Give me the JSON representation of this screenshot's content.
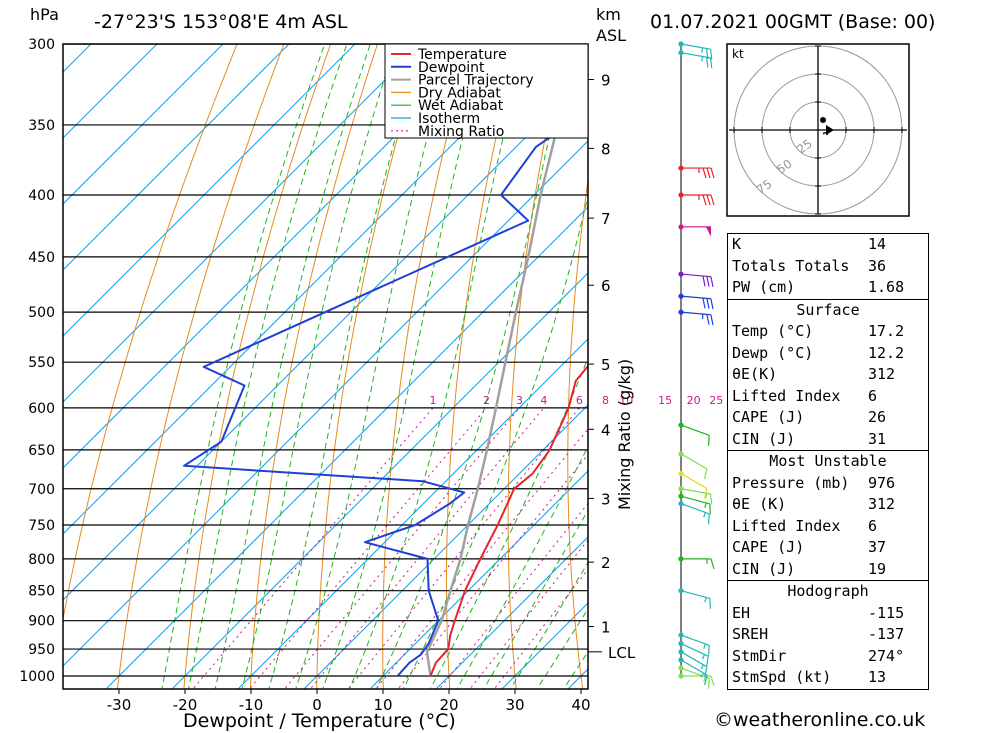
{
  "header": {
    "p_unit": "hPa",
    "location": "-27°23'S 153°08'E 4m ASL",
    "km_unit": "km",
    "km_sub": "ASL",
    "datetime": "01.07.2021 00GMT (Base: 00)"
  },
  "chart_data": {
    "type": "skew-t",
    "xlabel": "Dewpoint / Temperature (°C)",
    "ylabel_right": "Mixing Ratio (g/kg)",
    "xlim": [
      -40,
      40
    ],
    "ylim_hpa": [
      1000,
      300
    ],
    "pressure_ticks": [
      300,
      350,
      400,
      450,
      500,
      550,
      600,
      650,
      700,
      750,
      800,
      850,
      900,
      950,
      1000
    ],
    "temperature_ticks": [
      -30,
      -20,
      -10,
      0,
      10,
      20,
      30,
      40
    ],
    "height_km_ticks": [
      {
        "km": "9",
        "p": 321
      },
      {
        "km": "8",
        "p": 366
      },
      {
        "km": "7",
        "p": 418
      },
      {
        "km": "6",
        "p": 475
      },
      {
        "km": "5",
        "p": 552
      },
      {
        "km": "4",
        "p": 625
      },
      {
        "km": "3",
        "p": 713
      },
      {
        "km": "2",
        "p": 805
      },
      {
        "km": "1",
        "p": 910
      }
    ],
    "lcl": {
      "label": "LCL",
      "p": 955
    },
    "mixing_ratio_labels": [
      "1",
      "2",
      "3",
      "4",
      "6",
      "8",
      "10",
      "15",
      "20",
      "25"
    ],
    "legend": [
      "Temperature",
      "Dewpoint",
      "Parcel Trajectory",
      "Dry Adiabat",
      "Wet Adiabat",
      "Isotherm",
      "Mixing Ratio"
    ],
    "colors": {
      "temperature": "#e8232c",
      "dewpoint": "#1f3fd6",
      "parcel": "#a0a0a0",
      "dry_adiabat": "#e88a1e",
      "wet_adiabat": "#1eb41e",
      "isotherm": "#1e9be0",
      "mixing_ratio": "#cc1a8c"
    },
    "temperature": [
      [
        1000,
        17.2
      ],
      [
        975,
        16.0
      ],
      [
        950,
        15.8
      ],
      [
        925,
        14.0
      ],
      [
        900,
        12.5
      ],
      [
        850,
        9.5
      ],
      [
        800,
        7.0
      ],
      [
        750,
        4.5
      ],
      [
        700,
        1.5
      ],
      [
        680,
        2.0
      ],
      [
        650,
        1.0
      ],
      [
        600,
        -2.5
      ],
      [
        570,
        -5.5
      ],
      [
        550,
        -6.0
      ],
      [
        500,
        -10.0
      ],
      [
        450,
        -15.0
      ],
      [
        420,
        -19.0
      ],
      [
        400,
        -23.0
      ],
      [
        375,
        -26.0
      ],
      [
        360,
        -28.0
      ],
      [
        350,
        -28.0
      ],
      [
        325,
        -31.5
      ],
      [
        300,
        -36.0
      ]
    ],
    "dewpoint": [
      [
        1000,
        12.2
      ],
      [
        975,
        12.0
      ],
      [
        960,
        12.5
      ],
      [
        940,
        12.0
      ],
      [
        900,
        10.0
      ],
      [
        850,
        4.0
      ],
      [
        800,
        -1.0
      ],
      [
        775,
        -13.0
      ],
      [
        750,
        -8.0
      ],
      [
        720,
        -6.0
      ],
      [
        705,
        -5.5
      ],
      [
        690,
        -13.5
      ],
      [
        670,
        -52.0
      ],
      [
        640,
        -50.0
      ],
      [
        575,
        -55.0
      ],
      [
        555,
        -64.0
      ],
      [
        420,
        -37.0
      ],
      [
        400,
        -45.0
      ],
      [
        365,
        -47.0
      ],
      [
        345,
        -45.0
      ],
      [
        310,
        -52.0
      ],
      [
        300,
        -55.0
      ]
    ],
    "parcel": [
      [
        1000,
        17.2
      ],
      [
        955,
        13.0
      ],
      [
        900,
        10.5
      ],
      [
        850,
        7.3
      ],
      [
        800,
        4.0
      ],
      [
        750,
        0.0
      ],
      [
        700,
        -4.0
      ],
      [
        650,
        -8.5
      ],
      [
        600,
        -13.5
      ],
      [
        550,
        -19.0
      ],
      [
        500,
        -25.0
      ],
      [
        450,
        -31.5
      ],
      [
        400,
        -39.0
      ],
      [
        350,
        -47.0
      ],
      [
        300,
        -57.0
      ]
    ],
    "wind_barbs": [
      {
        "p": 1000,
        "dir": 270,
        "spd": 13,
        "color": "#7ee04a"
      },
      {
        "p": 985,
        "dir": 290,
        "spd": 15,
        "color": "#7ee04a"
      },
      {
        "p": 970,
        "dir": 300,
        "spd": 15,
        "color": "#25b5b5"
      },
      {
        "p": 955,
        "dir": 300,
        "spd": 15,
        "color": "#25b5b5"
      },
      {
        "p": 940,
        "dir": 295,
        "spd": 15,
        "color": "#25b5b5"
      },
      {
        "p": 925,
        "dir": 290,
        "spd": 15,
        "color": "#25b5b5"
      },
      {
        "p": 850,
        "dir": 285,
        "spd": 15,
        "color": "#25b5b5"
      },
      {
        "p": 800,
        "dir": 270,
        "spd": 15,
        "color": "#1eb41e"
      },
      {
        "p": 720,
        "dir": 290,
        "spd": 15,
        "color": "#25b5b5"
      },
      {
        "p": 710,
        "dir": 285,
        "spd": 15,
        "color": "#1eb41e"
      },
      {
        "p": 700,
        "dir": 280,
        "spd": 15,
        "color": "#7ee04a"
      },
      {
        "p": 680,
        "dir": 300,
        "spd": 10,
        "color": "#e0e020"
      },
      {
        "p": 655,
        "dir": 300,
        "spd": 10,
        "color": "#7ee04a"
      },
      {
        "p": 620,
        "dir": 290,
        "spd": 10,
        "color": "#1eb41e"
      },
      {
        "p": 500,
        "dir": 275,
        "spd": 25,
        "color": "#1f3fd6"
      },
      {
        "p": 485,
        "dir": 275,
        "spd": 30,
        "color": "#1f3fd6"
      },
      {
        "p": 465,
        "dir": 275,
        "spd": 30,
        "color": "#7a1ec8"
      },
      {
        "p": 425,
        "dir": 270,
        "spd": 50,
        "color": "#cc1a8c"
      },
      {
        "p": 400,
        "dir": 270,
        "spd": 35,
        "color": "#e8232c"
      },
      {
        "p": 380,
        "dir": 270,
        "spd": 35,
        "color": "#e8232c"
      },
      {
        "p": 305,
        "dir": 280,
        "spd": 25,
        "color": "#25b5b5"
      },
      {
        "p": 300,
        "dir": 280,
        "spd": 25,
        "color": "#25b5b5"
      }
    ]
  },
  "hodograph": {
    "unit": "kt",
    "ring_labels": [
      "25",
      "50",
      "75"
    ]
  },
  "indices": {
    "general": [
      {
        "label": "K",
        "value": "14"
      },
      {
        "label": "Totals Totals",
        "value": "36"
      },
      {
        "label": "PW (cm)",
        "value": "1.68"
      }
    ],
    "surface": {
      "title": "Surface",
      "rows": [
        {
          "label": "Temp (°C)",
          "value": "17.2"
        },
        {
          "label": "Dewp (°C)",
          "value": "12.2"
        },
        {
          "label": "θE(K)",
          "value": "312"
        },
        {
          "label": "Lifted Index",
          "value": "6"
        },
        {
          "label": "CAPE (J)",
          "value": "26"
        },
        {
          "label": "CIN (J)",
          "value": "31"
        }
      ]
    },
    "most_unstable": {
      "title": "Most Unstable",
      "rows": [
        {
          "label": "Pressure (mb)",
          "value": "976"
        },
        {
          "label": "θE (K)",
          "value": "312"
        },
        {
          "label": "Lifted Index",
          "value": "6"
        },
        {
          "label": "CAPE (J)",
          "value": "37"
        },
        {
          "label": "CIN (J)",
          "value": "19"
        }
      ]
    },
    "hodograph": {
      "title": "Hodograph",
      "rows": [
        {
          "label": "EH",
          "value": "-115"
        },
        {
          "label": "SREH",
          "value": "-137"
        },
        {
          "label": "StmDir",
          "value": "274°"
        },
        {
          "label": "StmSpd (kt)",
          "value": "13"
        }
      ]
    }
  },
  "credit": "©weatheronline.co.uk"
}
